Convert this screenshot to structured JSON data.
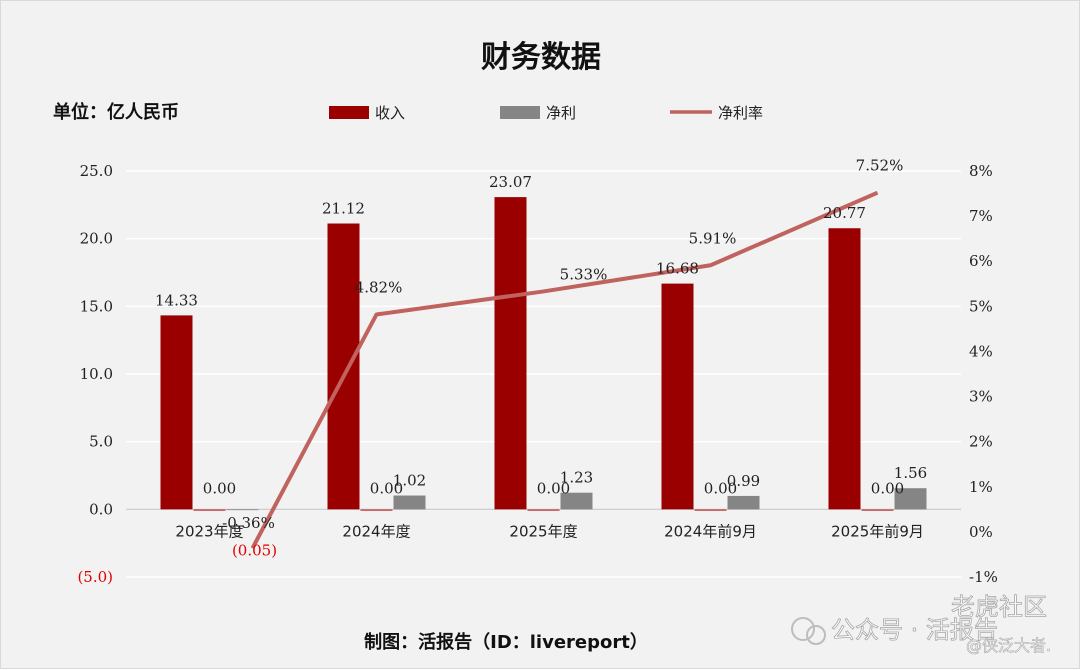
{
  "chart_data": {
    "type": "bar",
    "title": "财务数据",
    "unit_label": "单位：亿人民币",
    "categories": [
      "2023年度",
      "2024年度",
      "2025年度",
      "2024年前9月",
      "2025年前9月"
    ],
    "series": [
      {
        "name": "收入",
        "kind": "bar",
        "axis": "left",
        "color": "#9b0000",
        "values": [
          14.33,
          21.12,
          23.07,
          16.68,
          20.77
        ],
        "labels": [
          "14.33",
          "21.12",
          "23.07",
          "16.68",
          "20.77"
        ]
      },
      {
        "name": "净利",
        "kind": "bar",
        "axis": "left",
        "color": "#858585",
        "values": [
          -0.05,
          1.02,
          1.23,
          0.99,
          1.56
        ],
        "labels": [
          "(0.05)",
          "1.02",
          "1.23",
          "0.99",
          "1.56"
        ]
      },
      {
        "name": "",
        "kind": "bar",
        "axis": "left",
        "color": "#c0504d",
        "values": [
          0,
          0,
          0,
          0,
          0
        ],
        "labels": [
          "0.00",
          "0.00",
          "0.00",
          "0.00",
          "0.00"
        ]
      },
      {
        "name": "净利率",
        "kind": "line",
        "axis": "right",
        "color": "#c0625e",
        "values": [
          -0.36,
          4.82,
          5.33,
          5.91,
          7.52
        ],
        "labels": [
          "-0.36%",
          "4.82%",
          "5.33%",
          "5.91%",
          "7.52%"
        ]
      }
    ],
    "y_left": {
      "range": [
        -5,
        25
      ],
      "ticks": [
        -5,
        0,
        5,
        10,
        15,
        20,
        25
      ],
      "tick_labels": [
        "(5.0)",
        "0.0",
        "5.0",
        "10.0",
        "15.0",
        "20.0",
        "25.0"
      ]
    },
    "y_right": {
      "range": [
        -1,
        8
      ],
      "ticks": [
        -1,
        0,
        1,
        2,
        3,
        4,
        5,
        6,
        7,
        8
      ],
      "tick_labels": [
        "-1%",
        "0%",
        "1%",
        "2%",
        "3%",
        "4%",
        "5%",
        "6%",
        "7%",
        "8%"
      ]
    },
    "grid": true,
    "legend_position": "top"
  },
  "footer": {
    "credit": "制图：活报告（ID：livereport）"
  },
  "watermark": {
    "brand": "公众号 · 活报告",
    "community": "老虎社区",
    "handle": "@侠泛大者."
  }
}
